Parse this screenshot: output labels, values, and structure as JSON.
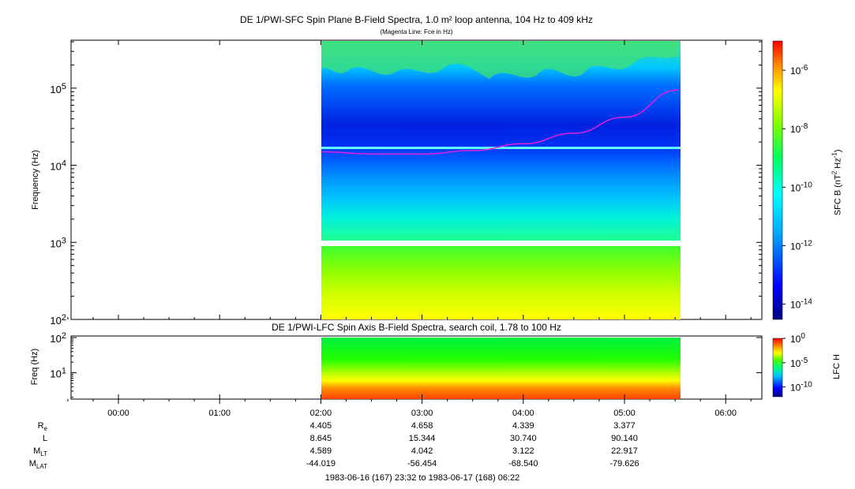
{
  "chart_data": [
    {
      "type": "heatmap",
      "title": "DE 1/PWI-SFC  Spin Plane B-Field Spectra, 1.0 m² loop antenna, 104 Hz to 409 kHz",
      "subtitle": "(Magenta Line: Fce in Hz)",
      "ylabel": "Frequency (Hz)",
      "yscale": "log",
      "ylim": [
        100,
        409000
      ],
      "yticks": [
        "10^2",
        "10^3",
        "10^4",
        "10^5"
      ],
      "xlim": [
        "1983-06-16 23:32",
        "1983-06-17 06:22"
      ],
      "data_time_range": [
        "02:00",
        "05:32"
      ],
      "colorbar": {
        "label": "SFC B (nT^2 Hz^-1)",
        "scale": "log",
        "range": [
          3e-15,
          1e-05
        ],
        "ticks": [
          "10^-6",
          "10^-8",
          "10^-10",
          "10^-12",
          "10^-14"
        ]
      },
      "fce_line": {
        "name": "Fce in Hz",
        "color": "#e020e0",
        "times": [
          "02:00",
          "02:30",
          "03:00",
          "03:30",
          "04:00",
          "04:30",
          "05:00",
          "05:32"
        ],
        "values": [
          15000,
          14000,
          14000,
          15500,
          19000,
          26000,
          42000,
          95000
        ]
      },
      "gap_band_hz": [
        900,
        1050
      ]
    },
    {
      "type": "heatmap",
      "title": "DE 1/PWI-LFC  Spin Axis B-Field Spectra, search coil, 1.78 to 100 Hz",
      "ylabel": "Freq (Hz)",
      "yscale": "log",
      "ylim": [
        1.78,
        100
      ],
      "yticks": [
        "10^1",
        "10^2"
      ],
      "data_time_range": [
        "02:00",
        "05:32"
      ],
      "colorbar": {
        "label": "LFC H",
        "scale": "log",
        "range": [
          1e-12,
          1
        ],
        "ticks": [
          "10^0",
          "10^-5",
          "10^-10"
        ]
      }
    }
  ],
  "xaxis": {
    "tick_labels": [
      "00:00",
      "01:00",
      "02:00",
      "03:00",
      "04:00",
      "05:00",
      "06:00"
    ]
  },
  "ephemeris": {
    "rows": [
      {
        "label": "R",
        "sub": "e",
        "values": [
          "4.405",
          "4.658",
          "4.339",
          "3.377"
        ]
      },
      {
        "label": "L",
        "sub": "",
        "values": [
          "8.645",
          "15.344",
          "30.740",
          "90.140"
        ]
      },
      {
        "label": "M",
        "sub": "LT",
        "values": [
          "4.589",
          "4.042",
          "3.122",
          "22.917"
        ]
      },
      {
        "label": "M",
        "sub": "LAT",
        "values": [
          "-44.019",
          "-56.454",
          "-68.540",
          "-79.626"
        ]
      }
    ]
  },
  "time_range_text": "1983-06-16 (167) 23:32 to 1983-06-17 (168) 06:22"
}
